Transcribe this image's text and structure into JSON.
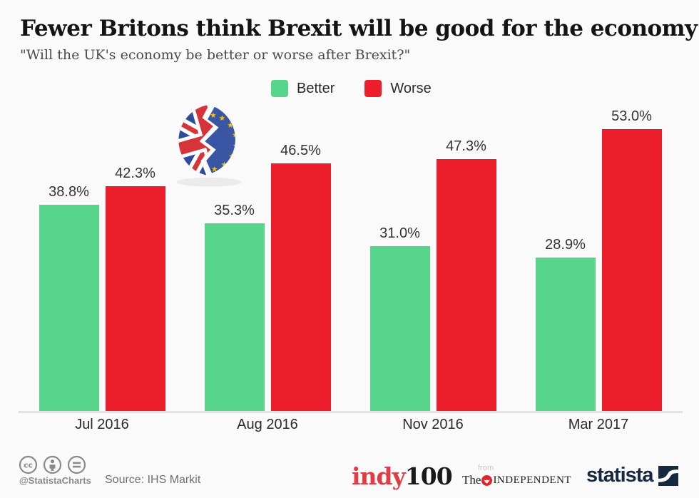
{
  "page": {
    "background": "#fafafa"
  },
  "header": {
    "title": "Fewer Britons think Brexit will be good for the economy",
    "subtitle": "\"Will the UK's economy be better or worse after Brexit?\""
  },
  "legend": [
    {
      "label": "Better",
      "color": "#57d58c"
    },
    {
      "label": "Worse",
      "color": "#ec1e2c"
    }
  ],
  "chart_data": {
    "type": "bar",
    "categories": [
      "Jul 2016",
      "Aug 2016",
      "Nov 2016",
      "Mar 2017"
    ],
    "series": [
      {
        "name": "Better",
        "color": "#57d58c",
        "values": [
          38.8,
          35.3,
          31.0,
          28.9
        ]
      },
      {
        "name": "Worse",
        "color": "#ec1e2c",
        "values": [
          42.3,
          46.5,
          47.3,
          53.0
        ]
      }
    ],
    "value_suffix": "%",
    "ylim": [
      0,
      60
    ],
    "grid": false,
    "legend_position": "top",
    "xlabel": "",
    "ylabel": ""
  },
  "icons": {
    "brexit": "broken-circle-uk-eu-flags",
    "license": [
      "cc-icon",
      "attribution-person-icon",
      "equals-icon"
    ]
  },
  "footer": {
    "handle": "@StatistaCharts",
    "source": "Source: IHS Markit",
    "indy_red": "indy",
    "indy_black": "100",
    "from": "from",
    "the": "The",
    "independent": "INDEPENDENT",
    "statista": "statista"
  },
  "colors": {
    "bar_better": "#57d58c",
    "bar_worse": "#ec1e2c",
    "axis_line": "#e2e2e2",
    "eu_blue": "#3a55a4",
    "uk_red": "#d6333b",
    "star_yellow": "#f5c50d",
    "statista_navy": "#17293e",
    "indy_red": "#e23b43"
  }
}
